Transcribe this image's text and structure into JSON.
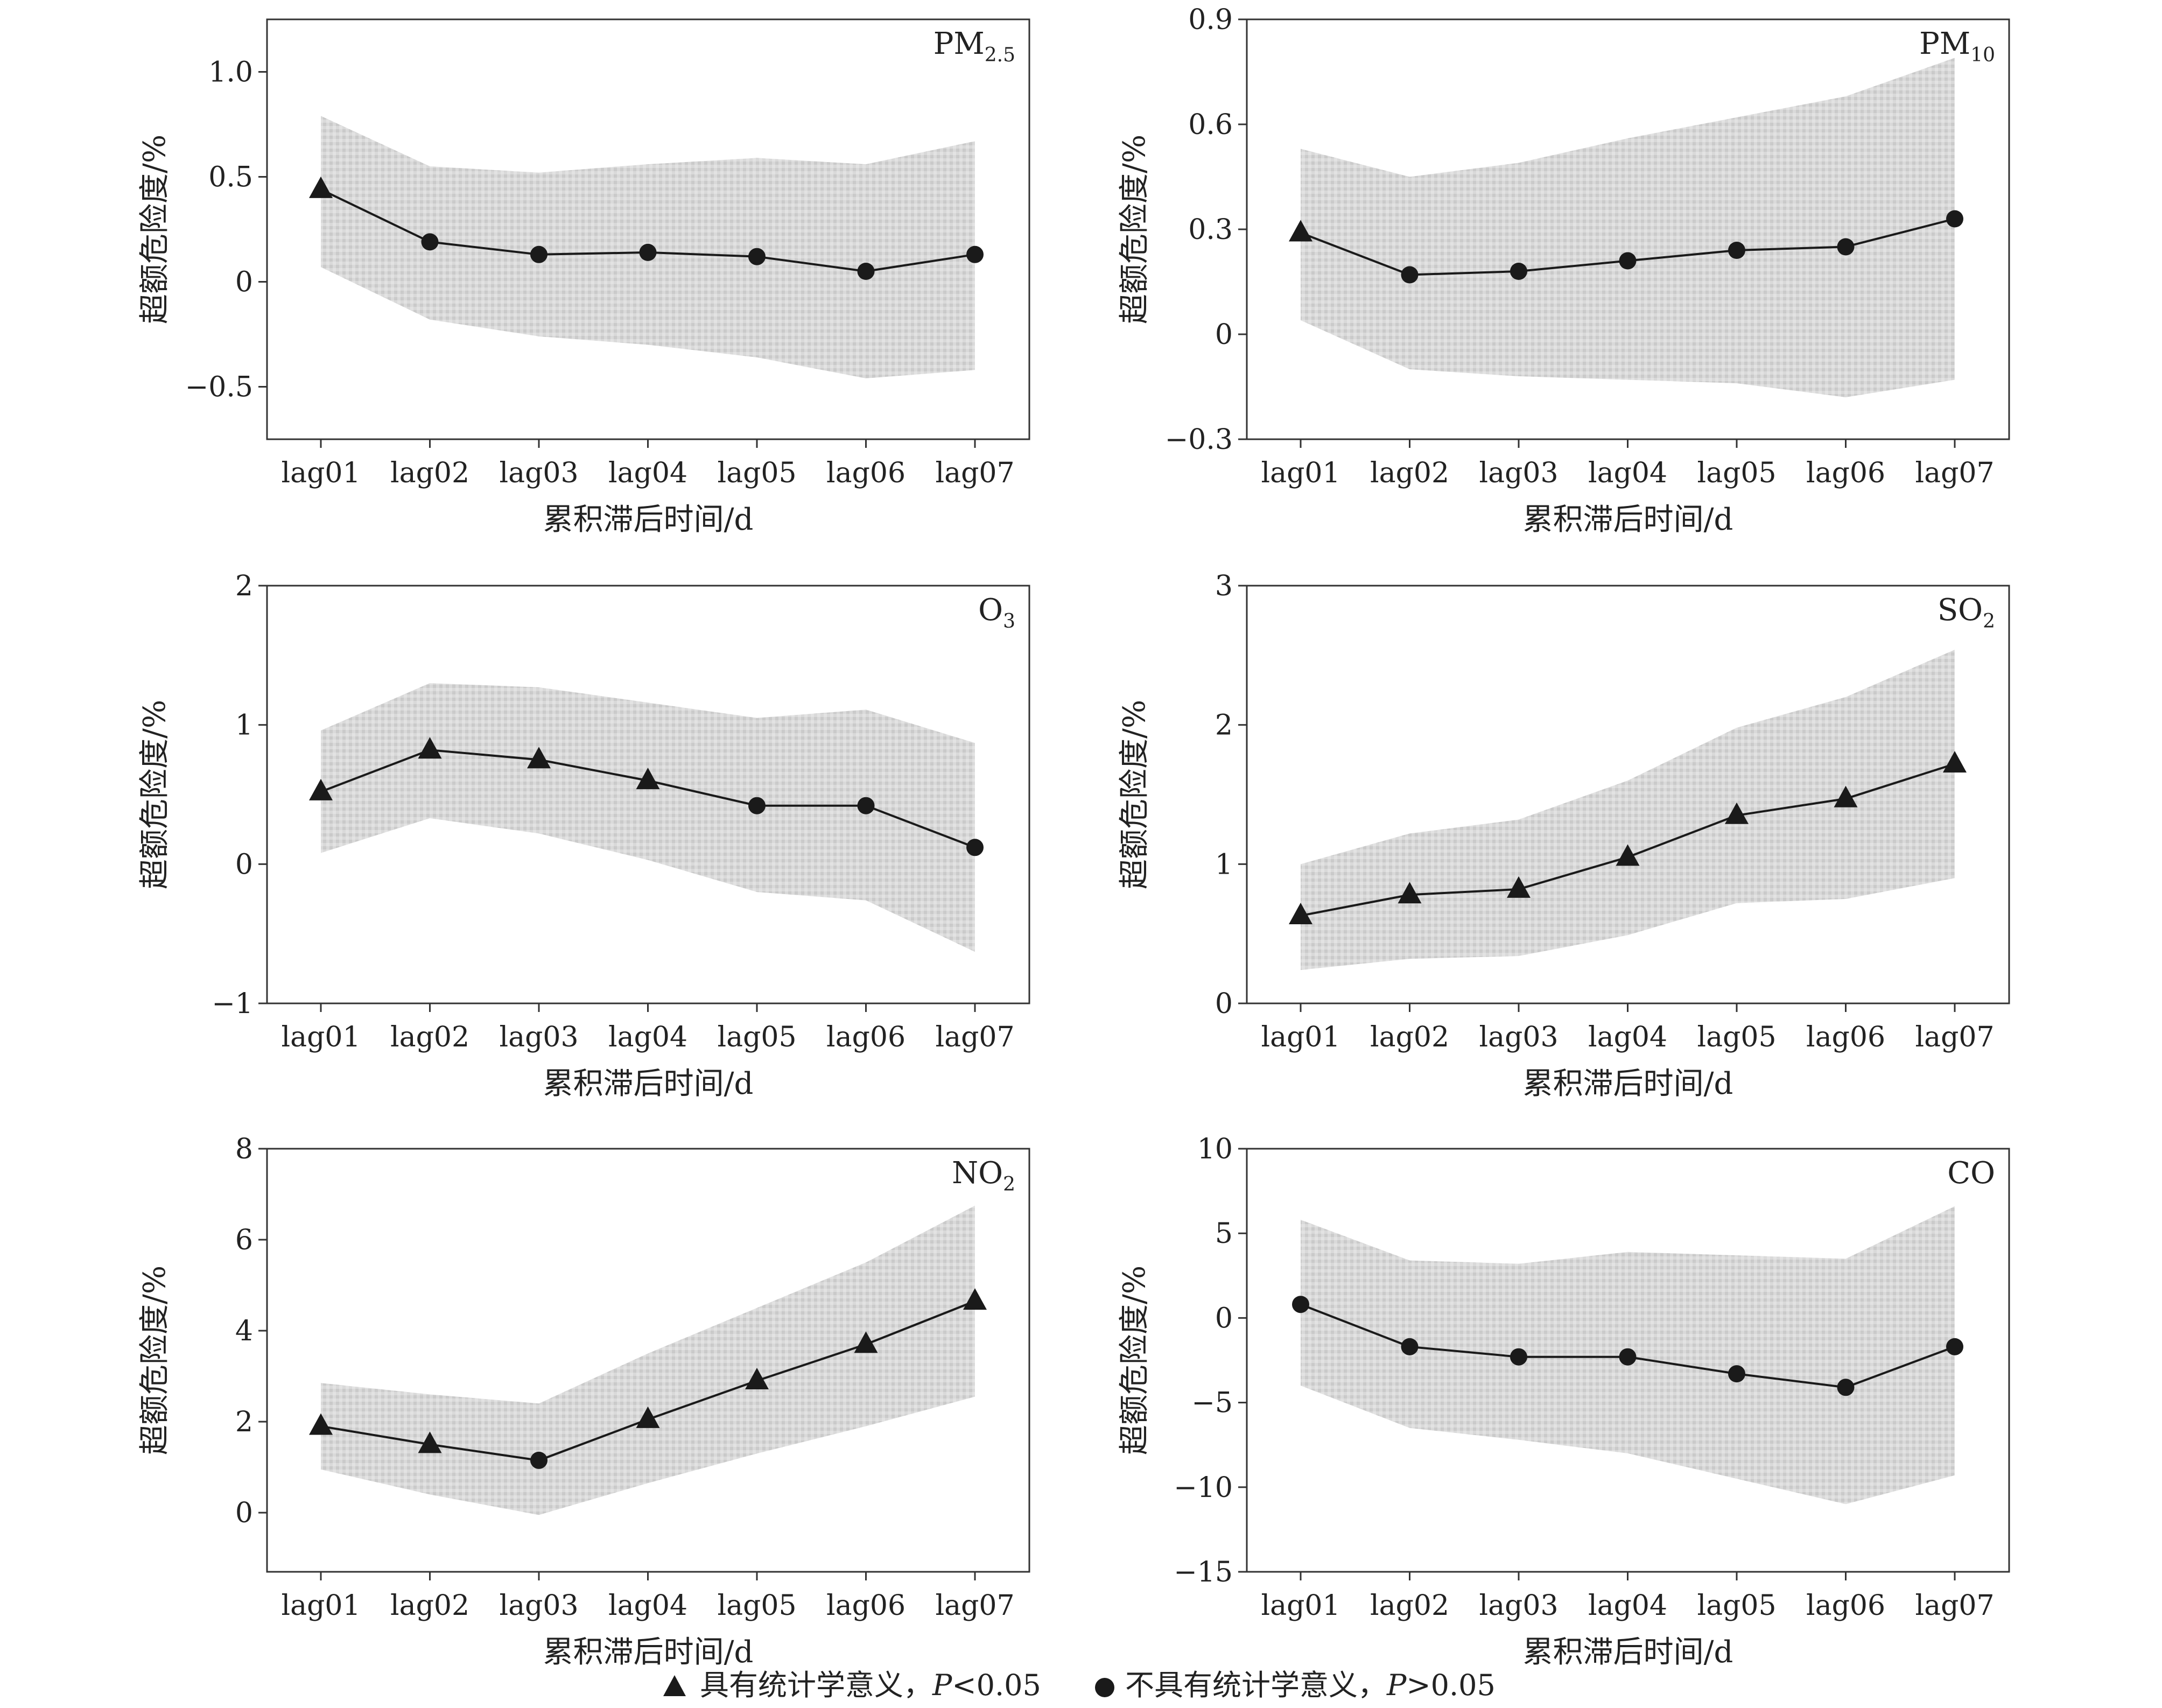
{
  "chart_data": [
    {
      "type": "line",
      "title_main": "PM",
      "title_sub": "2.5",
      "xlabel": "累积滞后时间/d",
      "ylabel": "超额危险度/%",
      "categories": [
        "lag01",
        "lag02",
        "lag03",
        "lag04",
        "lag05",
        "lag06",
        "lag07"
      ],
      "ylim": [
        -0.75,
        1.25
      ],
      "yticks": [
        -0.5,
        0,
        0.5,
        1.0
      ],
      "ytick_labels": [
        "−0.5",
        "0",
        "0.5",
        "1.0"
      ],
      "values": [
        0.44,
        0.19,
        0.13,
        0.14,
        0.12,
        0.05,
        0.13
      ],
      "lower": [
        0.07,
        -0.18,
        -0.26,
        -0.3,
        -0.36,
        -0.46,
        -0.42
      ],
      "upper": [
        0.79,
        0.55,
        0.52,
        0.56,
        0.59,
        0.56,
        0.67
      ],
      "significant": [
        true,
        false,
        false,
        false,
        false,
        false,
        false
      ]
    },
    {
      "type": "line",
      "title_main": "PM",
      "title_sub": "10",
      "xlabel": "累积滞后时间/d",
      "ylabel": "超额危险度/%",
      "categories": [
        "lag01",
        "lag02",
        "lag03",
        "lag04",
        "lag05",
        "lag06",
        "lag07"
      ],
      "ylim": [
        -0.3,
        0.9
      ],
      "yticks": [
        -0.3,
        0,
        0.3,
        0.6,
        0.9
      ],
      "ytick_labels": [
        "−0.3",
        "0",
        "0.3",
        "0.6",
        "0.9"
      ],
      "values": [
        0.29,
        0.17,
        0.18,
        0.21,
        0.24,
        0.25,
        0.33
      ],
      "lower": [
        0.04,
        -0.1,
        -0.12,
        -0.13,
        -0.14,
        -0.18,
        -0.13
      ],
      "upper": [
        0.53,
        0.45,
        0.49,
        0.56,
        0.62,
        0.68,
        0.79
      ],
      "significant": [
        true,
        false,
        false,
        false,
        false,
        false,
        false
      ]
    },
    {
      "type": "line",
      "title_main": "O",
      "title_sub": "3",
      "xlabel": "累积滞后时间/d",
      "ylabel": "超额危险度/%",
      "categories": [
        "lag01",
        "lag02",
        "lag03",
        "lag04",
        "lag05",
        "lag06",
        "lag07"
      ],
      "ylim": [
        -1,
        2
      ],
      "yticks": [
        -1,
        0,
        1,
        2
      ],
      "ytick_labels": [
        "−1",
        "0",
        "1",
        "2"
      ],
      "values": [
        0.52,
        0.82,
        0.75,
        0.6,
        0.42,
        0.42,
        0.12
      ],
      "lower": [
        0.08,
        0.33,
        0.22,
        0.03,
        -0.2,
        -0.26,
        -0.63
      ],
      "upper": [
        0.96,
        1.3,
        1.27,
        1.16,
        1.05,
        1.11,
        0.87
      ],
      "significant": [
        true,
        true,
        true,
        true,
        false,
        false,
        false
      ]
    },
    {
      "type": "line",
      "title_main": "SO",
      "title_sub": "2",
      "xlabel": "累积滞后时间/d",
      "ylabel": "超额危险度/%",
      "categories": [
        "lag01",
        "lag02",
        "lag03",
        "lag04",
        "lag05",
        "lag06",
        "lag07"
      ],
      "ylim": [
        0,
        3
      ],
      "yticks": [
        0,
        1,
        2,
        3
      ],
      "ytick_labels": [
        "0",
        "1",
        "2",
        "3"
      ],
      "values": [
        0.63,
        0.78,
        0.82,
        1.05,
        1.35,
        1.47,
        1.72
      ],
      "lower": [
        0.24,
        0.32,
        0.34,
        0.49,
        0.72,
        0.75,
        0.9
      ],
      "upper": [
        1.0,
        1.22,
        1.32,
        1.6,
        1.98,
        2.2,
        2.54
      ],
      "significant": [
        true,
        true,
        true,
        true,
        true,
        true,
        true
      ]
    },
    {
      "type": "line",
      "title_main": "NO",
      "title_sub": "2",
      "xlabel": "累积滞后时间/d",
      "ylabel": "超额危险度/%",
      "categories": [
        "lag01",
        "lag02",
        "lag03",
        "lag04",
        "lag05",
        "lag06",
        "lag07"
      ],
      "ylim": [
        -1.3,
        8
      ],
      "yticks": [
        0,
        2,
        4,
        6,
        8
      ],
      "ytick_labels": [
        "0",
        "2",
        "4",
        "6",
        "8"
      ],
      "values": [
        1.9,
        1.5,
        1.15,
        2.05,
        2.9,
        3.7,
        4.65
      ],
      "lower": [
        0.95,
        0.4,
        -0.05,
        0.65,
        1.3,
        1.9,
        2.55
      ],
      "upper": [
        2.85,
        2.6,
        2.4,
        3.5,
        4.5,
        5.5,
        6.75
      ],
      "significant": [
        true,
        true,
        false,
        true,
        true,
        true,
        true
      ]
    },
    {
      "type": "line",
      "title_main": "CO",
      "title_sub": "",
      "xlabel": "累积滞后时间/d",
      "ylabel": "超额危险度/%",
      "categories": [
        "lag01",
        "lag02",
        "lag03",
        "lag04",
        "lag05",
        "lag06",
        "lag07"
      ],
      "ylim": [
        -15,
        10
      ],
      "yticks": [
        -15,
        -10,
        -5,
        0,
        5,
        10
      ],
      "ytick_labels": [
        "−15",
        "−10",
        "−5",
        "0",
        "5",
        "10"
      ],
      "values": [
        0.8,
        -1.7,
        -2.3,
        -2.3,
        -3.3,
        -4.1,
        -1.7
      ],
      "lower": [
        -4.0,
        -6.5,
        -7.2,
        -8.0,
        -9.5,
        -11.0,
        -9.3
      ],
      "upper": [
        5.8,
        3.4,
        3.2,
        3.9,
        3.7,
        3.5,
        6.6
      ],
      "significant": [
        false,
        false,
        false,
        false,
        false,
        false,
        false
      ]
    }
  ],
  "legend": {
    "significant_label": "具有统计学意义，",
    "significant_p_italic": "P",
    "significant_p_rest": "<0.05",
    "nonsignificant_label": "不具有统计学意义，",
    "nonsignificant_p_italic": "P",
    "nonsignificant_p_rest": ">0.05"
  },
  "colors": {
    "band": "#d9d9d9",
    "band_speckle": "#c6c6c6",
    "line": "#1a1a1a",
    "marker": "#1a1a1a",
    "frame": "#333333"
  }
}
